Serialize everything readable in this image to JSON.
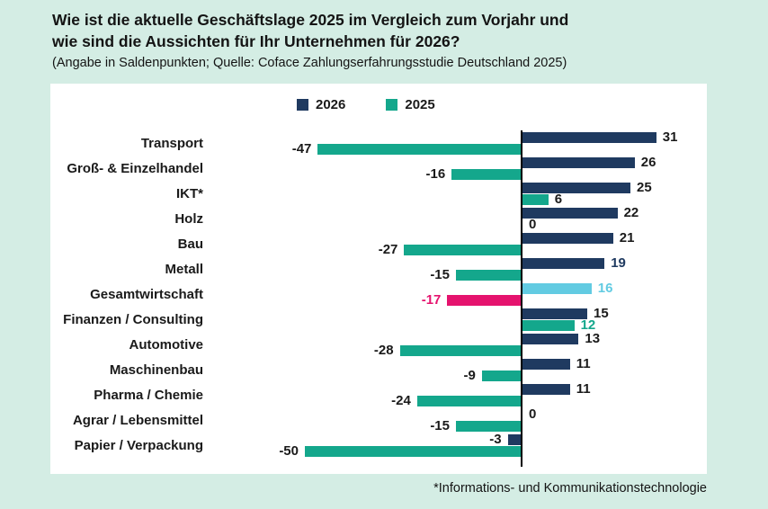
{
  "page": {
    "background": "#d4ede4"
  },
  "header": {
    "title_lines": [
      "Wie ist die aktuelle Geschäftslage 2025 im Vergleich zum Vorjahr und",
      "wie sind die Aussichten für Ihr Unternehmen für 2026?"
    ],
    "subtitle": "(Angabe in Saldenpunkten; Quelle: Coface Zahlungserfahrungsstudie Deutschland 2025)"
  },
  "legend": {
    "items": [
      {
        "label": "2026",
        "color": "#1f3a60"
      },
      {
        "label": "2025",
        "color": "#14a78c"
      }
    ]
  },
  "footnote": "*Informations- und Kommunikationstechnologie",
  "chart_data": {
    "type": "bar",
    "orientation": "horizontal",
    "unit": "Saldenpunkte",
    "categories": [
      "Transport",
      "Groß- & Einzelhandel",
      "IKT*",
      "Holz",
      "Bau",
      "Metall",
      "Gesamtwirtschaft",
      "Finanzen / Consulting",
      "Automotive",
      "Maschinenbau",
      "Pharma / Chemie",
      "Agrar / Lebensmittel",
      "Papier / Verpackung"
    ],
    "series": [
      {
        "name": "2026",
        "color": "#1f3a60",
        "values": [
          31,
          26,
          25,
          22,
          21,
          19,
          16,
          15,
          13,
          11,
          11,
          0,
          -3
        ]
      },
      {
        "name": "2025",
        "color": "#14a78c",
        "values": [
          -47,
          -16,
          6,
          0,
          -27,
          -15,
          -17,
          12,
          -28,
          -9,
          -24,
          -15,
          -50
        ]
      }
    ],
    "xlim": [
      -50,
      31
    ],
    "zero_axis": true,
    "grid": false,
    "legend_position": "top",
    "highlight": {
      "category": "Gesamtwirtschaft",
      "colors": {
        "2026": "#62cbe2",
        "2025": "#e5136e"
      }
    },
    "value_label_color_overrides": [
      {
        "category": "Metall",
        "series": "2026",
        "color": "#1f3a60"
      },
      {
        "category": "Gesamtwirtschaft",
        "series": "2026",
        "color": "#62cbe2"
      },
      {
        "category": "Gesamtwirtschaft",
        "series": "2025",
        "color": "#e5136e"
      },
      {
        "category": "Finanzen / Consulting",
        "series": "2025",
        "color": "#14a78c"
      }
    ]
  }
}
